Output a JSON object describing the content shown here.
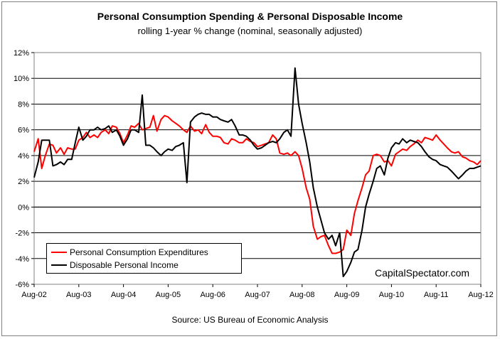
{
  "chart_data": {
    "type": "line",
    "title": "Personal Consumption Spending & Personal Disposable Income",
    "subtitle": "rolling 1-year % change (nominal, seasonally adjusted)",
    "source": "Source:  US Bureau of Economic Analysis",
    "watermark": "CapitalSpectator.com",
    "x_tick_labels": [
      "Aug-02",
      "Aug-03",
      "Aug-04",
      "Aug-05",
      "Aug-06",
      "Aug-07",
      "Aug-08",
      "Aug-09",
      "Aug-10",
      "Aug-11",
      "Aug-12"
    ],
    "y_tick_labels": [
      "12%",
      "10%",
      "8%",
      "6%",
      "4%",
      "2%",
      "0%",
      "-2%",
      "-4%",
      "-6%"
    ],
    "ylim": [
      -6,
      12
    ],
    "grid": "horizontal",
    "legend_placement": "bottom-left",
    "colors": {
      "pce": "#ff0000",
      "dpi": "#000000"
    },
    "series": [
      {
        "name": "Personal Consumption Expenditures",
        "color": "#ff0000",
        "x": [
          2002.58,
          2002.67,
          2002.75,
          2002.83,
          2002.92,
          2003.0,
          2003.08,
          2003.17,
          2003.25,
          2003.33,
          2003.42,
          2003.5,
          2003.58,
          2003.67,
          2003.75,
          2003.83,
          2003.92,
          2004.0,
          2004.08,
          2004.17,
          2004.25,
          2004.33,
          2004.42,
          2004.5,
          2004.58,
          2004.67,
          2004.75,
          2004.83,
          2004.92,
          2005.0,
          2005.08,
          2005.17,
          2005.25,
          2005.33,
          2005.42,
          2005.5,
          2005.58,
          2005.67,
          2005.75,
          2005.83,
          2005.92,
          2006.0,
          2006.08,
          2006.17,
          2006.25,
          2006.33,
          2006.42,
          2006.5,
          2006.58,
          2006.67,
          2006.75,
          2006.83,
          2006.92,
          2007.0,
          2007.08,
          2007.17,
          2007.25,
          2007.33,
          2007.42,
          2007.5,
          2007.58,
          2007.67,
          2007.75,
          2007.83,
          2007.92,
          2008.0,
          2008.08,
          2008.17,
          2008.25,
          2008.33,
          2008.42,
          2008.5,
          2008.58,
          2008.67,
          2008.75,
          2008.83,
          2008.92,
          2009.0,
          2009.08,
          2009.17,
          2009.25,
          2009.33,
          2009.42,
          2009.5,
          2009.58,
          2009.67,
          2009.75,
          2009.83,
          2009.92,
          2010.0,
          2010.08,
          2010.17,
          2010.25,
          2010.33,
          2010.42,
          2010.5,
          2010.58,
          2010.67,
          2010.75,
          2010.83,
          2010.92,
          2011.0,
          2011.08,
          2011.17,
          2011.25,
          2011.33,
          2011.42,
          2011.5,
          2011.58,
          2011.67,
          2011.75,
          2011.83,
          2011.92,
          2012.0,
          2012.08,
          2012.17,
          2012.25,
          2012.33,
          2012.42,
          2012.5,
          2012.58
        ],
        "values": [
          4.3,
          5.3,
          3.0,
          4.0,
          4.9,
          4.8,
          4.2,
          4.6,
          4.1,
          4.6,
          4.5,
          4.5,
          5.2,
          5.4,
          5.8,
          5.4,
          5.6,
          5.4,
          5.8,
          6.0,
          5.7,
          6.3,
          6.2,
          5.7,
          5.0,
          5.6,
          6.3,
          6.2,
          6.5,
          6.0,
          6.1,
          6.2,
          7.1,
          5.9,
          6.8,
          7.1,
          7.0,
          6.7,
          6.5,
          6.3,
          6.0,
          5.8,
          6.3,
          5.9,
          6.0,
          5.7,
          6.4,
          5.8,
          5.5,
          5.5,
          5.4,
          5.0,
          4.9,
          5.3,
          5.2,
          5.0,
          5.0,
          5.3,
          5.1,
          5.0,
          4.7,
          4.8,
          4.9,
          5.0,
          5.6,
          5.3,
          4.2,
          4.1,
          4.2,
          4.0,
          4.3,
          4.0,
          3.0,
          1.5,
          0.6,
          -1.5,
          -2.5,
          -2.3,
          -2.2,
          -3.0,
          -3.6,
          -3.6,
          -3.5,
          -3.3,
          -1.8,
          -2.2,
          -0.5,
          0.5,
          1.5,
          2.5,
          2.8,
          4.0,
          4.1,
          4.0,
          3.5,
          3.6,
          3.2,
          4.1,
          4.3,
          4.5,
          4.4,
          4.7,
          4.9,
          5.2,
          5.0,
          5.4,
          5.3,
          5.2,
          5.6,
          5.2,
          4.9,
          4.6,
          4.3,
          4.2,
          4.3,
          3.9,
          3.8,
          3.6,
          3.5,
          3.3,
          3.6
        ]
      },
      {
        "name": "Disposable Personal Income",
        "color": "#000000",
        "x": [
          2002.58,
          2002.67,
          2002.75,
          2002.83,
          2002.92,
          2003.0,
          2003.08,
          2003.17,
          2003.25,
          2003.33,
          2003.42,
          2003.5,
          2003.58,
          2003.67,
          2003.75,
          2003.83,
          2003.92,
          2004.0,
          2004.08,
          2004.17,
          2004.25,
          2004.33,
          2004.42,
          2004.5,
          2004.58,
          2004.67,
          2004.75,
          2004.83,
          2004.92,
          2005.0,
          2005.08,
          2005.17,
          2005.25,
          2005.33,
          2005.42,
          2005.5,
          2005.58,
          2005.67,
          2005.75,
          2005.83,
          2005.92,
          2006.0,
          2006.08,
          2006.17,
          2006.25,
          2006.33,
          2006.42,
          2006.5,
          2006.58,
          2006.67,
          2006.75,
          2006.83,
          2006.92,
          2007.0,
          2007.08,
          2007.17,
          2007.25,
          2007.33,
          2007.42,
          2007.5,
          2007.58,
          2007.67,
          2007.75,
          2007.83,
          2007.92,
          2008.0,
          2008.08,
          2008.17,
          2008.25,
          2008.33,
          2008.42,
          2008.5,
          2008.58,
          2008.67,
          2008.75,
          2008.83,
          2008.92,
          2009.0,
          2009.08,
          2009.17,
          2009.25,
          2009.33,
          2009.42,
          2009.5,
          2009.58,
          2009.67,
          2009.75,
          2009.83,
          2009.92,
          2010.0,
          2010.08,
          2010.17,
          2010.25,
          2010.33,
          2010.42,
          2010.5,
          2010.58,
          2010.67,
          2010.75,
          2010.83,
          2010.92,
          2011.0,
          2011.08,
          2011.17,
          2011.25,
          2011.33,
          2011.42,
          2011.5,
          2011.58,
          2011.67,
          2011.75,
          2011.83,
          2011.92,
          2012.0,
          2012.08,
          2012.17,
          2012.25,
          2012.33,
          2012.42,
          2012.5,
          2012.58
        ],
        "values": [
          2.3,
          3.5,
          5.2,
          5.2,
          5.2,
          3.2,
          3.3,
          3.5,
          3.3,
          3.7,
          3.7,
          5.0,
          6.2,
          5.2,
          5.5,
          6.0,
          6.0,
          6.2,
          6.0,
          6.1,
          6.3,
          5.8,
          6.0,
          5.5,
          4.8,
          5.3,
          6.0,
          6.0,
          5.8,
          8.7,
          4.8,
          4.8,
          4.6,
          4.3,
          4.0,
          4.3,
          4.5,
          4.4,
          4.7,
          4.8,
          5.0,
          1.9,
          6.6,
          7.0,
          7.2,
          7.3,
          7.2,
          7.2,
          7.0,
          7.0,
          6.8,
          6.7,
          6.6,
          6.8,
          6.3,
          5.6,
          5.6,
          5.5,
          5.2,
          4.8,
          4.5,
          4.6,
          4.8,
          5.0,
          5.1,
          5.0,
          5.3,
          5.8,
          6.0,
          5.5,
          10.8,
          8.0,
          6.5,
          5.0,
          3.5,
          1.5,
          0.0,
          -1.0,
          -2.0,
          -2.5,
          -2.2,
          -3.0,
          -2.0,
          -5.4,
          -5.0,
          -4.3,
          -3.5,
          -3.3,
          -1.8,
          0.0,
          1.0,
          2.0,
          3.0,
          3.2,
          2.5,
          3.8,
          4.6,
          5.0,
          4.9,
          5.3,
          5.0,
          5.2,
          5.1,
          5.0,
          4.7,
          4.3,
          3.9,
          3.7,
          3.6,
          3.3,
          3.2,
          3.1,
          2.8,
          2.5,
          2.2,
          2.5,
          2.8,
          3.0,
          3.0,
          3.1,
          3.2
        ]
      }
    ]
  }
}
